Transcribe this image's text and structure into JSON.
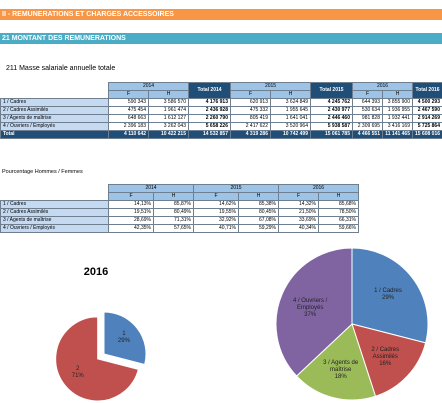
{
  "header": {
    "section": "II - REMUNERATIONS ET CHARGES ACCESSOIRES",
    "subsection": "21 MONTANT DES REMUNERATIONS",
    "heading": "211  Masse salariale annuelle totale",
    "heading2": "Pourcentage Hommes  / Femmes"
  },
  "table1": {
    "years": [
      "2014",
      "2015",
      "2016"
    ],
    "sub": [
      "F",
      "H"
    ],
    "totals": [
      "Total 2014",
      "Total 2015",
      "Total 2016"
    ],
    "rows": [
      [
        "1 / Cadres",
        "590 343",
        "3 586 570",
        "4 176 913",
        "620 913",
        "3 624 849",
        "4 245 762",
        "644 393",
        "3 855 900",
        "4 500 293"
      ],
      [
        "2 / Cadres Assimilés",
        "475 454",
        "1 961 474",
        "2 436 928",
        "475 332",
        "1 955 645",
        "2 430 977",
        "530 634",
        "1 936 955",
        "2 467 590"
      ],
      [
        "3 / Agents de maîtrise",
        "648 663",
        "1 612 127",
        "2 260 790",
        "805 419",
        "1 641 041",
        "2 446 460",
        "981 828",
        "1 932 441",
        "2 914 269"
      ],
      [
        "4 / Ouvriers / Employés",
        "2 396 183",
        "3 262 043",
        "5 658 226",
        "2 417 622",
        "3 520 964",
        "5 938 587",
        "2 309 695",
        "3 416 169",
        "5 725 864"
      ],
      [
        "Total",
        "4 110 642",
        "10 422 215",
        "14 532 857",
        "4 319 286",
        "10 742 499",
        "15 061 785",
        "4 466 551",
        "11 141 465",
        "15 608 016"
      ]
    ]
  },
  "table2": {
    "years": [
      "2014",
      "2015",
      "2016"
    ],
    "sub": [
      "F",
      "H"
    ],
    "rows": [
      [
        "1 / Cadres",
        "14,13%",
        "85,87%",
        "14,62%",
        "85,38%",
        "14,32%",
        "85,68%"
      ],
      [
        "2 / Cadres Assimilés",
        "19,51%",
        "80,49%",
        "19,55%",
        "80,45%",
        "21,50%",
        "78,50%"
      ],
      [
        "3 / Agents de maîtrise",
        "28,69%",
        "71,31%",
        "32,92%",
        "67,08%",
        "33,69%",
        "66,31%"
      ],
      [
        "4 / Ouvriers / Employés",
        "42,35%",
        "57,65%",
        "40,71%",
        "59,29%",
        "40,34%",
        "59,66%"
      ]
    ]
  },
  "chart_data": [
    {
      "type": "pie",
      "title": "2016",
      "categories": [
        "1",
        "2"
      ],
      "values": [
        29,
        71
      ],
      "value_labels": [
        "29%",
        "71%"
      ],
      "colors": [
        "#4f81bd",
        "#c0504d"
      ]
    },
    {
      "type": "pie",
      "categories": [
        "1 / Cadres",
        "2 / Cadres Assimilés",
        "3 / Agents de maîtrise",
        "4 / Ouvriers / Employés"
      ],
      "values": [
        29,
        16,
        18,
        37
      ],
      "value_labels": [
        "29%",
        "16%",
        "18%",
        "37%"
      ],
      "colors": [
        "#4f81bd",
        "#c0504d",
        "#9bbb59",
        "#8064a2"
      ]
    }
  ]
}
